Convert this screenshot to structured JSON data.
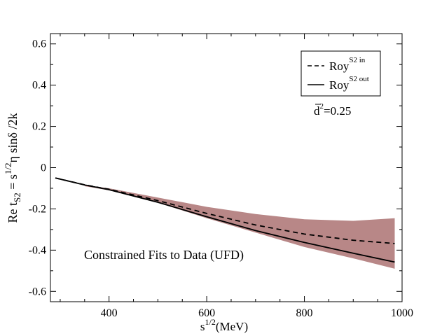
{
  "chart_data": {
    "type": "line",
    "title": "",
    "xlabel": {
      "base": "s",
      "sup": "1/2",
      "rest": "(MeV)"
    },
    "ylabel": {
      "p1": "Re t",
      "sub1": "S2",
      "p2": " = s",
      "sup1": "1/2",
      "p3": "η sinδ /2k"
    },
    "xlim": [
      280,
      1000
    ],
    "ylim": [
      -0.65,
      0.65
    ],
    "x_ticks": [
      400,
      600,
      800,
      1000
    ],
    "x_tick_labels": [
      "400",
      "600",
      "800",
      "1000"
    ],
    "y_ticks": [
      0.6,
      0.4,
      0.2,
      0,
      -0.2,
      -0.4,
      -0.6
    ],
    "y_tick_labels": [
      "0.6",
      "0.4",
      "0.2",
      "0",
      "-0.2",
      "-0.4",
      "-0.6"
    ],
    "band": {
      "name": "Constrained Fits to Data (UFD)",
      "color": "#b88787",
      "x": [
        350,
        400,
        500,
        600,
        700,
        800,
        900,
        985
      ],
      "upper": [
        -0.085,
        -0.1,
        -0.145,
        -0.19,
        -0.225,
        -0.25,
        -0.258,
        -0.245
      ],
      "lower": [
        -0.09,
        -0.11,
        -0.17,
        -0.245,
        -0.315,
        -0.385,
        -0.44,
        -0.49
      ]
    },
    "series": [
      {
        "name_base": "Roy",
        "name_sup": "S2 in",
        "style": "dashed",
        "color": "#000000",
        "x": [
          290,
          350,
          400,
          500,
          600,
          700,
          800,
          900,
          985
        ],
        "y": [
          -0.05,
          -0.083,
          -0.105,
          -0.16,
          -0.222,
          -0.278,
          -0.322,
          -0.352,
          -0.368
        ]
      },
      {
        "name_base": "Roy",
        "name_sup": "S2 out",
        "style": "solid",
        "color": "#000000",
        "x": [
          290,
          350,
          400,
          500,
          600,
          700,
          800,
          900,
          985
        ],
        "y": [
          -0.05,
          -0.084,
          -0.107,
          -0.168,
          -0.238,
          -0.305,
          -0.363,
          -0.415,
          -0.458
        ]
      }
    ],
    "annotations": {
      "param": {
        "base": "d",
        "sup": "2",
        "rest": "=0.25"
      },
      "band_label": "Constrained Fits to Data (UFD)"
    },
    "legend_position": "top-right",
    "grid": false
  }
}
